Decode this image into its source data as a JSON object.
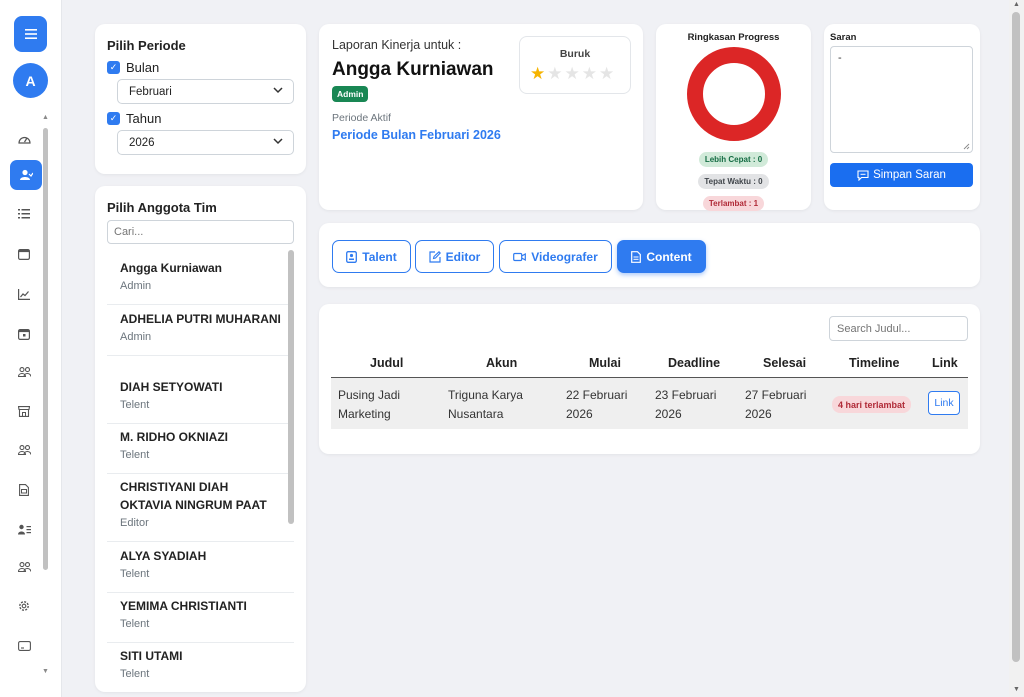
{
  "sidebar": {
    "menu_icon": "hamburger-icon",
    "avatar_letter": "A",
    "icons": [
      "dashboard-icon",
      "user-icon",
      "list-icon",
      "calendar-icon",
      "chart-icon",
      "calendar-event-icon",
      "people-icon",
      "store-icon",
      "people-icon",
      "document-icon",
      "person-list-icon",
      "people-icon",
      "gear-icon",
      "card-icon"
    ]
  },
  "periode": {
    "title": "Pilih Periode",
    "bulan_label": "Bulan",
    "bulan_value": "Februari",
    "tahun_label": "Tahun",
    "tahun_value": "2026"
  },
  "laporan": {
    "subtitle": "Laporan Kinerja untuk :",
    "name": "Angga Kurniawan",
    "role_badge": "Admin",
    "periode_label": "Periode Aktif",
    "periode_value": "Periode Bulan Februari 2026",
    "rating_label": "Buruk",
    "rating_value": 1,
    "rating_max": 5
  },
  "progress": {
    "title": "Ringkasan Progress",
    "lebih_cepat": "Lebih Cepat : 0",
    "tepat_waktu": "Tepat Waktu : 0",
    "terlambat": "Terlambat : 1",
    "donut": {
      "lebih_cepat": 0,
      "tepat_waktu": 0,
      "terlambat": 1
    },
    "colors": {
      "lebih_cepat": "#198754",
      "tepat_waktu": "#6c757d",
      "terlambat": "#dc2626"
    }
  },
  "saran": {
    "title": "Saran",
    "text": "-",
    "button": "Simpan Saran"
  },
  "tim": {
    "title": "Pilih Anggota Tim",
    "search_placeholder": "Cari...",
    "members": [
      {
        "name": "Angga Kurniawan",
        "role": "Admin"
      },
      {
        "name": "ADHELIA PUTRI MUHARANI",
        "role": "Admin"
      },
      {
        "name": "DIAH SETYOWATI",
        "role": "Telent"
      },
      {
        "name": "M. RIDHO OKNIAZI",
        "role": "Telent"
      },
      {
        "name": "CHRISTIYANI DIAH OKTAVIA NINGRUM PAAT",
        "role": "Editor"
      },
      {
        "name": "ALYA SYADIAH",
        "role": "Telent"
      },
      {
        "name": "YEMIMA CHRISTIANTI",
        "role": "Telent"
      },
      {
        "name": "SITI UTAMI",
        "role": "Telent"
      }
    ]
  },
  "tabs": {
    "talent": "Talent",
    "editor": "Editor",
    "videografer": "Videografer",
    "content": "Content",
    "active": "content"
  },
  "table": {
    "search_placeholder": "Search Judul...",
    "headers": [
      "Judul",
      "Akun",
      "Mulai",
      "Deadline",
      "Selesai",
      "Timeline",
      "Link"
    ],
    "rows": [
      {
        "judul": "Pusing Jadi Marketing",
        "akun": "Triguna Karya Nusantara",
        "mulai": "22 Februari 2026",
        "deadline": "23 Februari 2026",
        "selesai": "27 Februari 2026",
        "timeline": "4 hari terlambat",
        "link": "Link"
      }
    ]
  }
}
